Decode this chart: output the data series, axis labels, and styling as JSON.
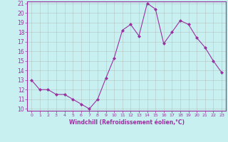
{
  "x": [
    0,
    1,
    2,
    3,
    4,
    5,
    6,
    7,
    8,
    9,
    10,
    11,
    12,
    13,
    14,
    15,
    16,
    17,
    18,
    19,
    20,
    21,
    22,
    23
  ],
  "y": [
    13,
    12,
    12,
    11.5,
    11.5,
    11,
    10.5,
    10,
    11,
    13.2,
    15.3,
    18.2,
    18.8,
    17.6,
    21,
    20.4,
    16.8,
    18,
    19.2,
    18.8,
    17.4,
    16.4,
    15,
    13.8
  ],
  "line_color": "#9b30a0",
  "marker": "D",
  "marker_size": 2,
  "bg_color": "#c8f0f0",
  "grid_color": "#aaaaaa",
  "xlabel": "Windchill (Refroidissement éolien,°C)",
  "xlabel_color": "#9b30a0",
  "tick_color": "#9b30a0",
  "spine_color": "#9b30a0",
  "ylim": [
    10,
    21
  ],
  "xlim": [
    -0.5,
    23.5
  ],
  "yticks": [
    10,
    11,
    12,
    13,
    14,
    15,
    16,
    17,
    18,
    19,
    20,
    21
  ],
  "xticks": [
    0,
    1,
    2,
    3,
    4,
    5,
    6,
    7,
    8,
    9,
    10,
    11,
    12,
    13,
    14,
    15,
    16,
    17,
    18,
    19,
    20,
    21,
    22,
    23
  ]
}
